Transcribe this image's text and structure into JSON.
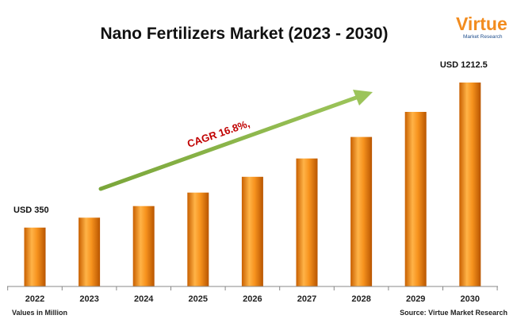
{
  "chart_data": {
    "type": "bar",
    "title": "Nano Fertilizers Market (2023 - 2030)",
    "categories": [
      "2022",
      "2023",
      "2024",
      "2025",
      "2026",
      "2027",
      "2028",
      "2029",
      "2030"
    ],
    "values": [
      350,
      409,
      478,
      558,
      652,
      761,
      889,
      1038,
      1212.5
    ],
    "ylim": [
      0,
      1300
    ],
    "grid": false,
    "data_labels": [
      {
        "category": "2022",
        "text": "USD 350"
      },
      {
        "category": "2030",
        "text": "USD 1212.5"
      }
    ],
    "annotation": "CAGR 16.8%,",
    "bar_color": "#f7931e",
    "arrow_color": "#8cb34a"
  },
  "footer": {
    "left": "Values in Million",
    "right": "Source: Virtue Market Research"
  },
  "logo": {
    "main": "Virtue",
    "sub": "Market Research"
  }
}
